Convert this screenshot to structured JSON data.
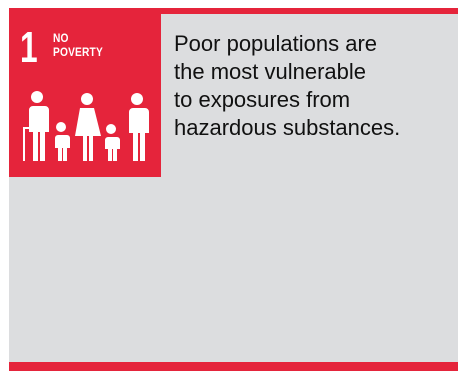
{
  "goal": {
    "number": "1",
    "title_lines": [
      "NO",
      "POVERTY"
    ],
    "icon": "family-icon",
    "color": "#e5243b"
  },
  "description": {
    "lines": [
      "Poor populations are",
      "the most vulnerable",
      "to exposures from",
      "hazardous substances."
    ]
  },
  "colors": {
    "panel_background": "#dcdddf",
    "accent": "#e5243b"
  }
}
